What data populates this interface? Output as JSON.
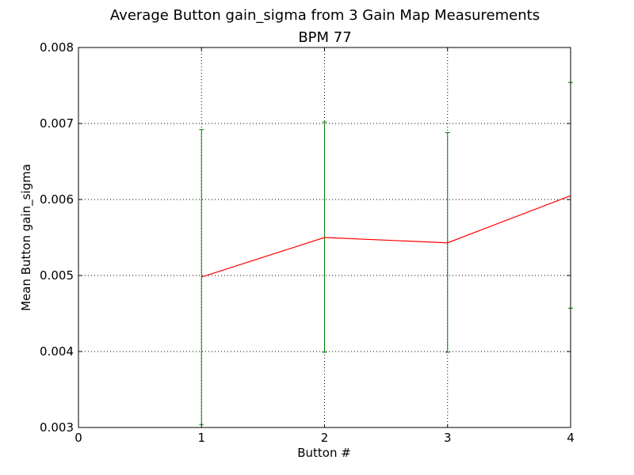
{
  "chart_data": {
    "type": "line",
    "title": "Average Button gain_sigma from 3 Gain Map Measurements",
    "subtitle": "BPM 77",
    "xlabel": "Button #",
    "ylabel": "Mean Button gain_sigma",
    "xlim": [
      0,
      4
    ],
    "ylim": [
      0.003,
      0.008
    ],
    "x_ticks": [
      "0",
      "1",
      "2",
      "3",
      "4"
    ],
    "y_ticks": [
      "0.003",
      "0.004",
      "0.005",
      "0.006",
      "0.007",
      "0.008"
    ],
    "grid": true,
    "series": [
      {
        "x": [
          1,
          2,
          3,
          4
        ],
        "values": [
          0.00498,
          0.0055,
          0.00543,
          0.00605
        ],
        "error_low": [
          0.00304,
          0.00399,
          0.00399,
          0.00457
        ],
        "error_high": [
          0.00692,
          0.00702,
          0.00688,
          0.00754
        ],
        "line_color": "#ff0000",
        "error_color": "#008000"
      }
    ]
  }
}
